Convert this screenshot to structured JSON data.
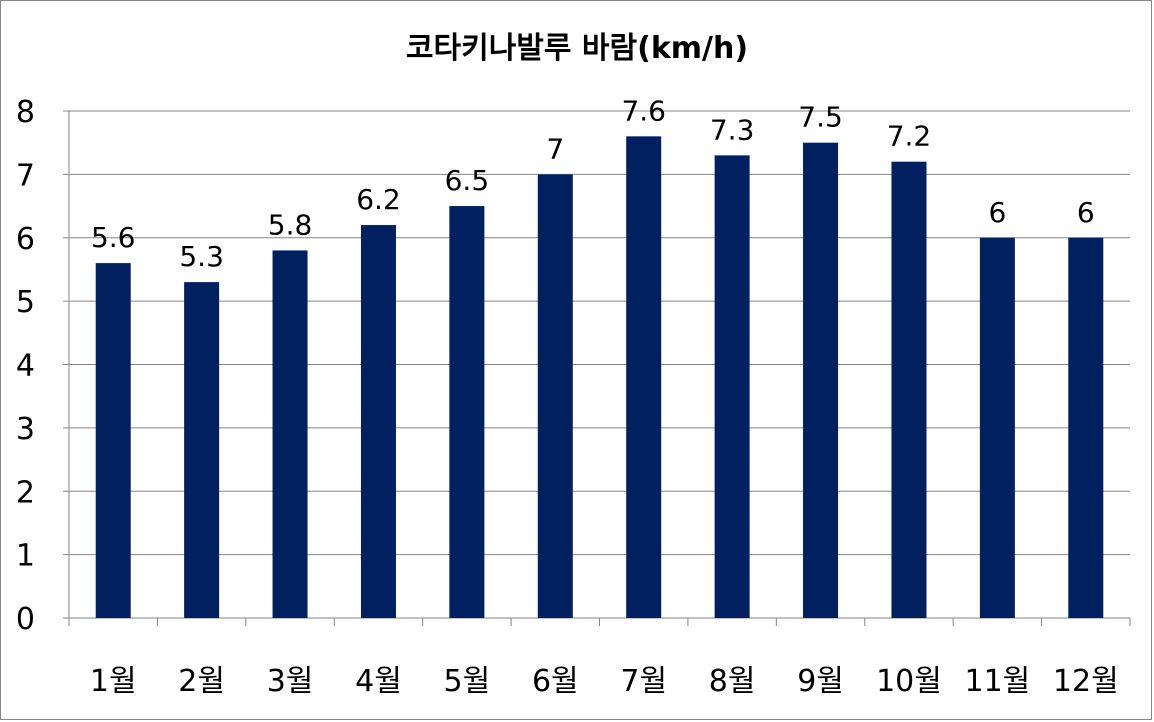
{
  "chart_data": {
    "type": "bar",
    "title": "코타키나발루 바람(km/h)",
    "categories": [
      "1월",
      "2월",
      "3월",
      "4월",
      "5월",
      "6월",
      "7월",
      "8월",
      "9월",
      "10월",
      "11월",
      "12월"
    ],
    "series": [
      {
        "values": [
          5.6,
          5.3,
          5.8,
          6.2,
          6.5,
          7,
          7.6,
          7.3,
          7.5,
          7.2,
          6,
          6
        ]
      }
    ],
    "data_labels": [
      "5.6",
      "5.3",
      "5.8",
      "6.2",
      "6.5",
      "7",
      "7.6",
      "7.3",
      "7.5",
      "7.2",
      "6",
      "6"
    ],
    "ylim": [
      0,
      8
    ],
    "yticks": [
      0,
      1,
      2,
      3,
      4,
      5,
      6,
      7,
      8
    ],
    "grid": true,
    "legend": "none",
    "bar_color": "#002060",
    "grid_color": "#868686"
  }
}
